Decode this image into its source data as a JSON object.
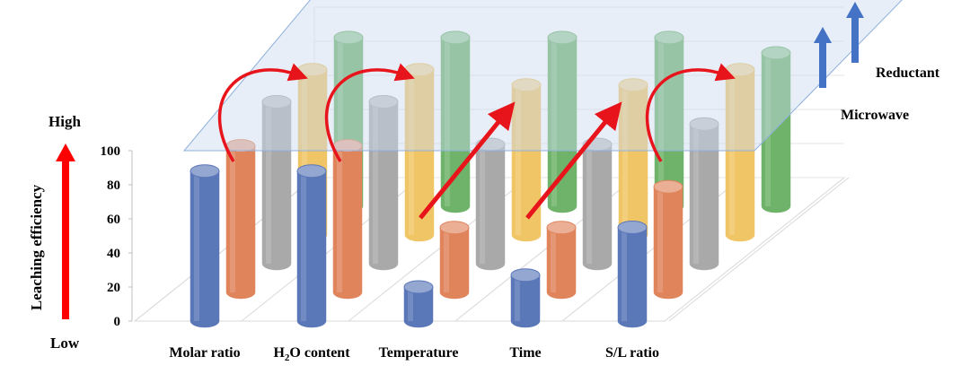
{
  "chart_data": {
    "type": "bar",
    "categories": [
      "Molar ratio",
      "H2O content",
      "Temperature",
      "Time",
      "S/L ratio"
    ],
    "ylim": [
      0,
      100
    ],
    "yticks": [
      0,
      20,
      40,
      60,
      80,
      100
    ],
    "series": [
      {
        "color": "#5a77b8",
        "values": [
          88,
          88,
          20,
          27,
          55
        ]
      },
      {
        "color": "#e0845c",
        "values": [
          86,
          86,
          38,
          38,
          62
        ]
      },
      {
        "color": "#a9a9a9",
        "values": [
          95,
          95,
          70,
          70,
          82
        ]
      },
      {
        "color": "#f0c566",
        "values": [
          97,
          97,
          88,
          88,
          97
        ]
      },
      {
        "color": "#6fb36a",
        "values": [
          99,
          99,
          99,
          99,
          90
        ]
      }
    ],
    "annotations": {
      "high_label": "High",
      "low_label": "Low",
      "ylabel": "Leaching efficiency",
      "microwave_label": "Microwave",
      "reductant_label": "Reductant"
    },
    "arrows": {
      "trend_color": "#e8141b",
      "factor_color": "#4472c4"
    }
  }
}
